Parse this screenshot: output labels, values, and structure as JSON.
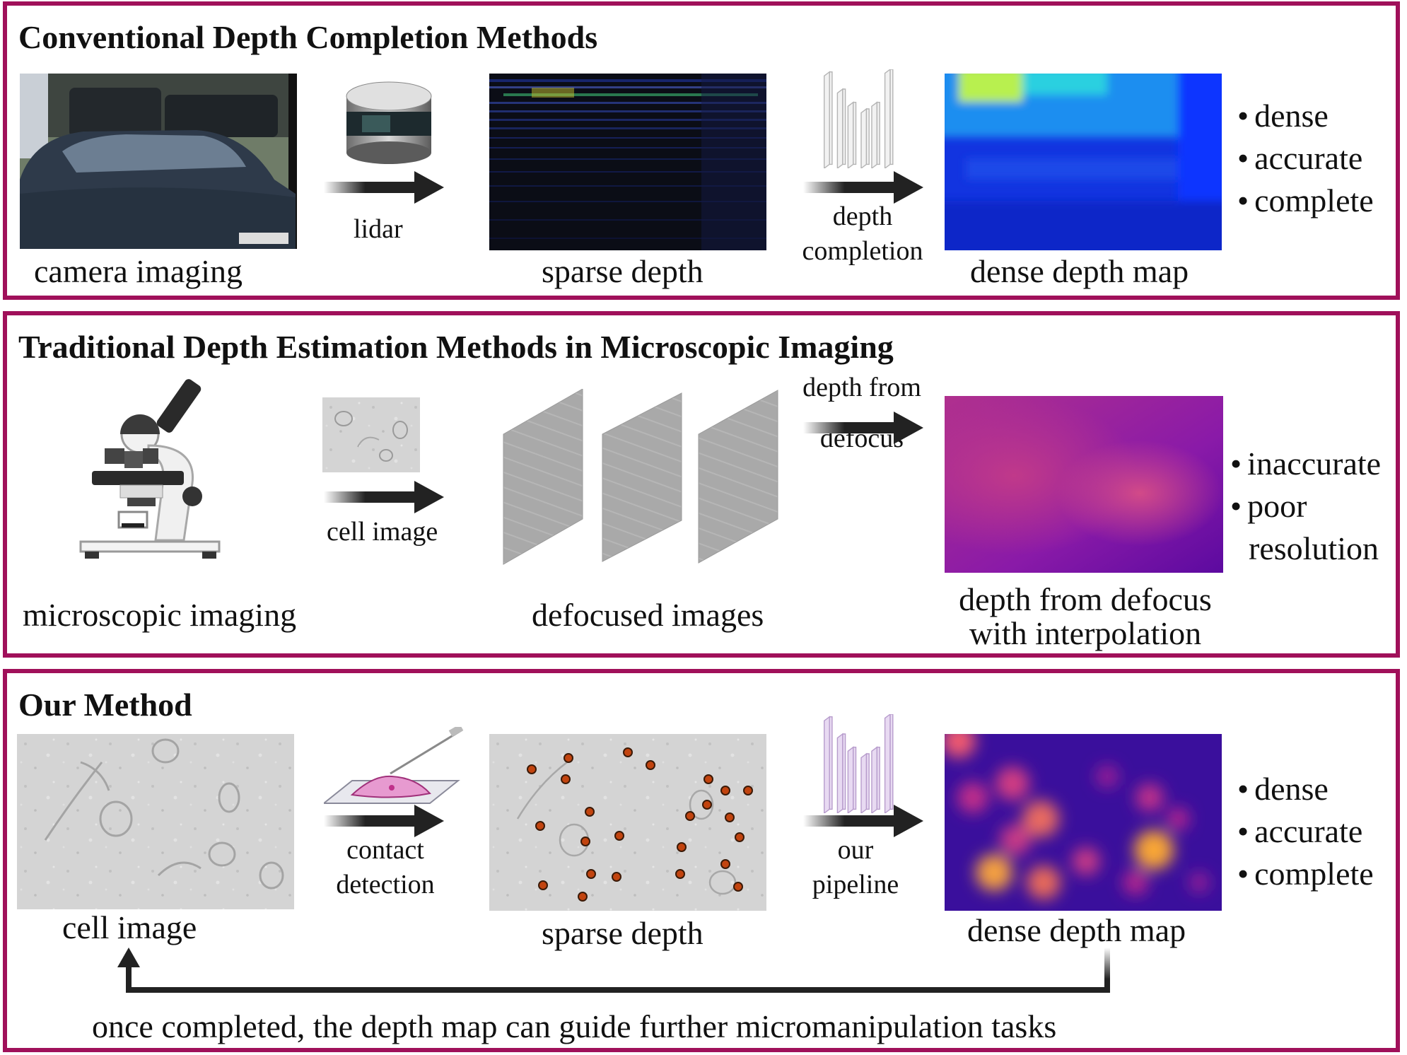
{
  "panel1": {
    "title": "Conventional Depth Completion Methods",
    "caption_camera": "camera imaging",
    "label_lidar": "lidar",
    "caption_sparse": "sparse depth",
    "label_completion_1": "depth",
    "label_completion_2": "completion",
    "caption_dense": "dense depth map",
    "bullets": [
      "dense",
      "accurate",
      "complete"
    ]
  },
  "panel2": {
    "title": "Traditional Depth Estimation Methods in Microscopic Imaging",
    "caption_micro": "microscopic imaging",
    "label_cell": "cell image",
    "caption_defocused": "defocused images",
    "label_dfd_1": "depth from",
    "label_dfd_2": "defocus",
    "caption_dfd_1": "depth from defocus",
    "caption_dfd_2": "with interpolation",
    "bullets": [
      "inaccurate",
      "poor"
    ],
    "bullet_continuation": "resolution"
  },
  "panel3": {
    "title": "Our Method",
    "caption_cell": "cell image",
    "label_contact_1": "contact",
    "label_contact_2": "detection",
    "caption_sparse": "sparse depth",
    "label_pipeline_1": "our",
    "label_pipeline_2": "pipeline",
    "caption_dense": "dense depth map",
    "bullets": [
      "dense",
      "accurate",
      "complete"
    ],
    "footer": "once completed, the depth map can guide further micromanipulation tasks"
  },
  "colors": {
    "panel_border": "#a0105a",
    "arrow": "#222222",
    "contact_dot": "#c2440f"
  }
}
